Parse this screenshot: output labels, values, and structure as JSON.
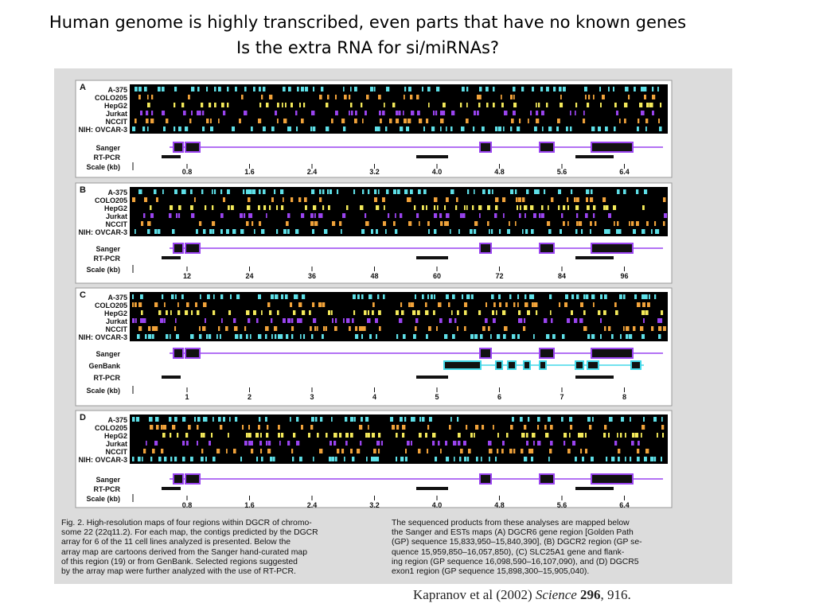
{
  "slide": {
    "title_line1": "Human genome is highly transcribed, even parts that have no known genes",
    "title_line2": "Is the extra RNA for si/miRNAs?",
    "citation_authors": "Kapranov et al (2002) ",
    "citation_journal": "Science",
    "citation_volume": "296",
    "citation_pages": ", 916."
  },
  "figure": {
    "cell_lines": [
      "A-375",
      "COLO205",
      "HepG2",
      "Jurkat",
      "NCCIT",
      "NIH: OVCAR-3"
    ],
    "lane_colors": [
      "#5ee0e8",
      "#f2a33a",
      "#f4ea5a",
      "#9a44f0",
      "#f0a23a",
      "#5ee0e8"
    ],
    "panels": [
      {
        "letter": "A",
        "tracks": [
          "Sanger",
          "RT-PCR"
        ],
        "scale_label": "Scale (kb)",
        "ticks": [
          "0.8",
          "1.6",
          "2.4",
          "3.2",
          "4.0",
          "4.8",
          "5.6",
          "6.4"
        ]
      },
      {
        "letter": "B",
        "tracks": [
          "Sanger",
          "RT-PCR"
        ],
        "scale_label": "Scale (kb)",
        "ticks": [
          "12",
          "24",
          "36",
          "48",
          "60",
          "72",
          "84",
          "96"
        ]
      },
      {
        "letter": "C",
        "tracks": [
          "Sanger",
          "GenBank",
          "RT-PCR"
        ],
        "scale_label": "Scale (kb)",
        "ticks": [
          "1",
          "2",
          "3",
          "4",
          "5",
          "6",
          "7",
          "8"
        ]
      },
      {
        "letter": "D",
        "tracks": [
          "Sanger",
          "RT-PCR"
        ],
        "scale_label": "Scale (kb)",
        "ticks": [
          "0.8",
          "1.6",
          "2.4",
          "3.2",
          "4.0",
          "4.8",
          "5.6",
          "6.4"
        ]
      }
    ],
    "caption_left": "Fig. 2. High-resolution maps of four regions within DGCR of chromo-\nsome 22 (22q11.2). For each map, the contigs predicted by the DGCR\narray for 6 of the 11 cell lines analyzed is presented. Below the\narray map are cartoons derived from the Sanger hand-curated map\nof this region (19) or from GenBank. Selected regions suggested\nby the array map were further analyzed with the use of RT-PCR.",
    "caption_right": "The sequenced products from these analyses are mapped below\nthe Sanger and ESTs maps (A) DGCR6 gene region [Golden Path\n(GP) sequence 15,833,950–15,840,390], (B) DGCR2 region (GP se-\nquence 15,959,850–16,057,850), (C) SLC25A1 gene and flank-\ning region (GP sequence 16,098,590–16,107,090), and (D) DGCR5\nexon1 region (GP sequence 15,898,300–15,905,040)."
  }
}
